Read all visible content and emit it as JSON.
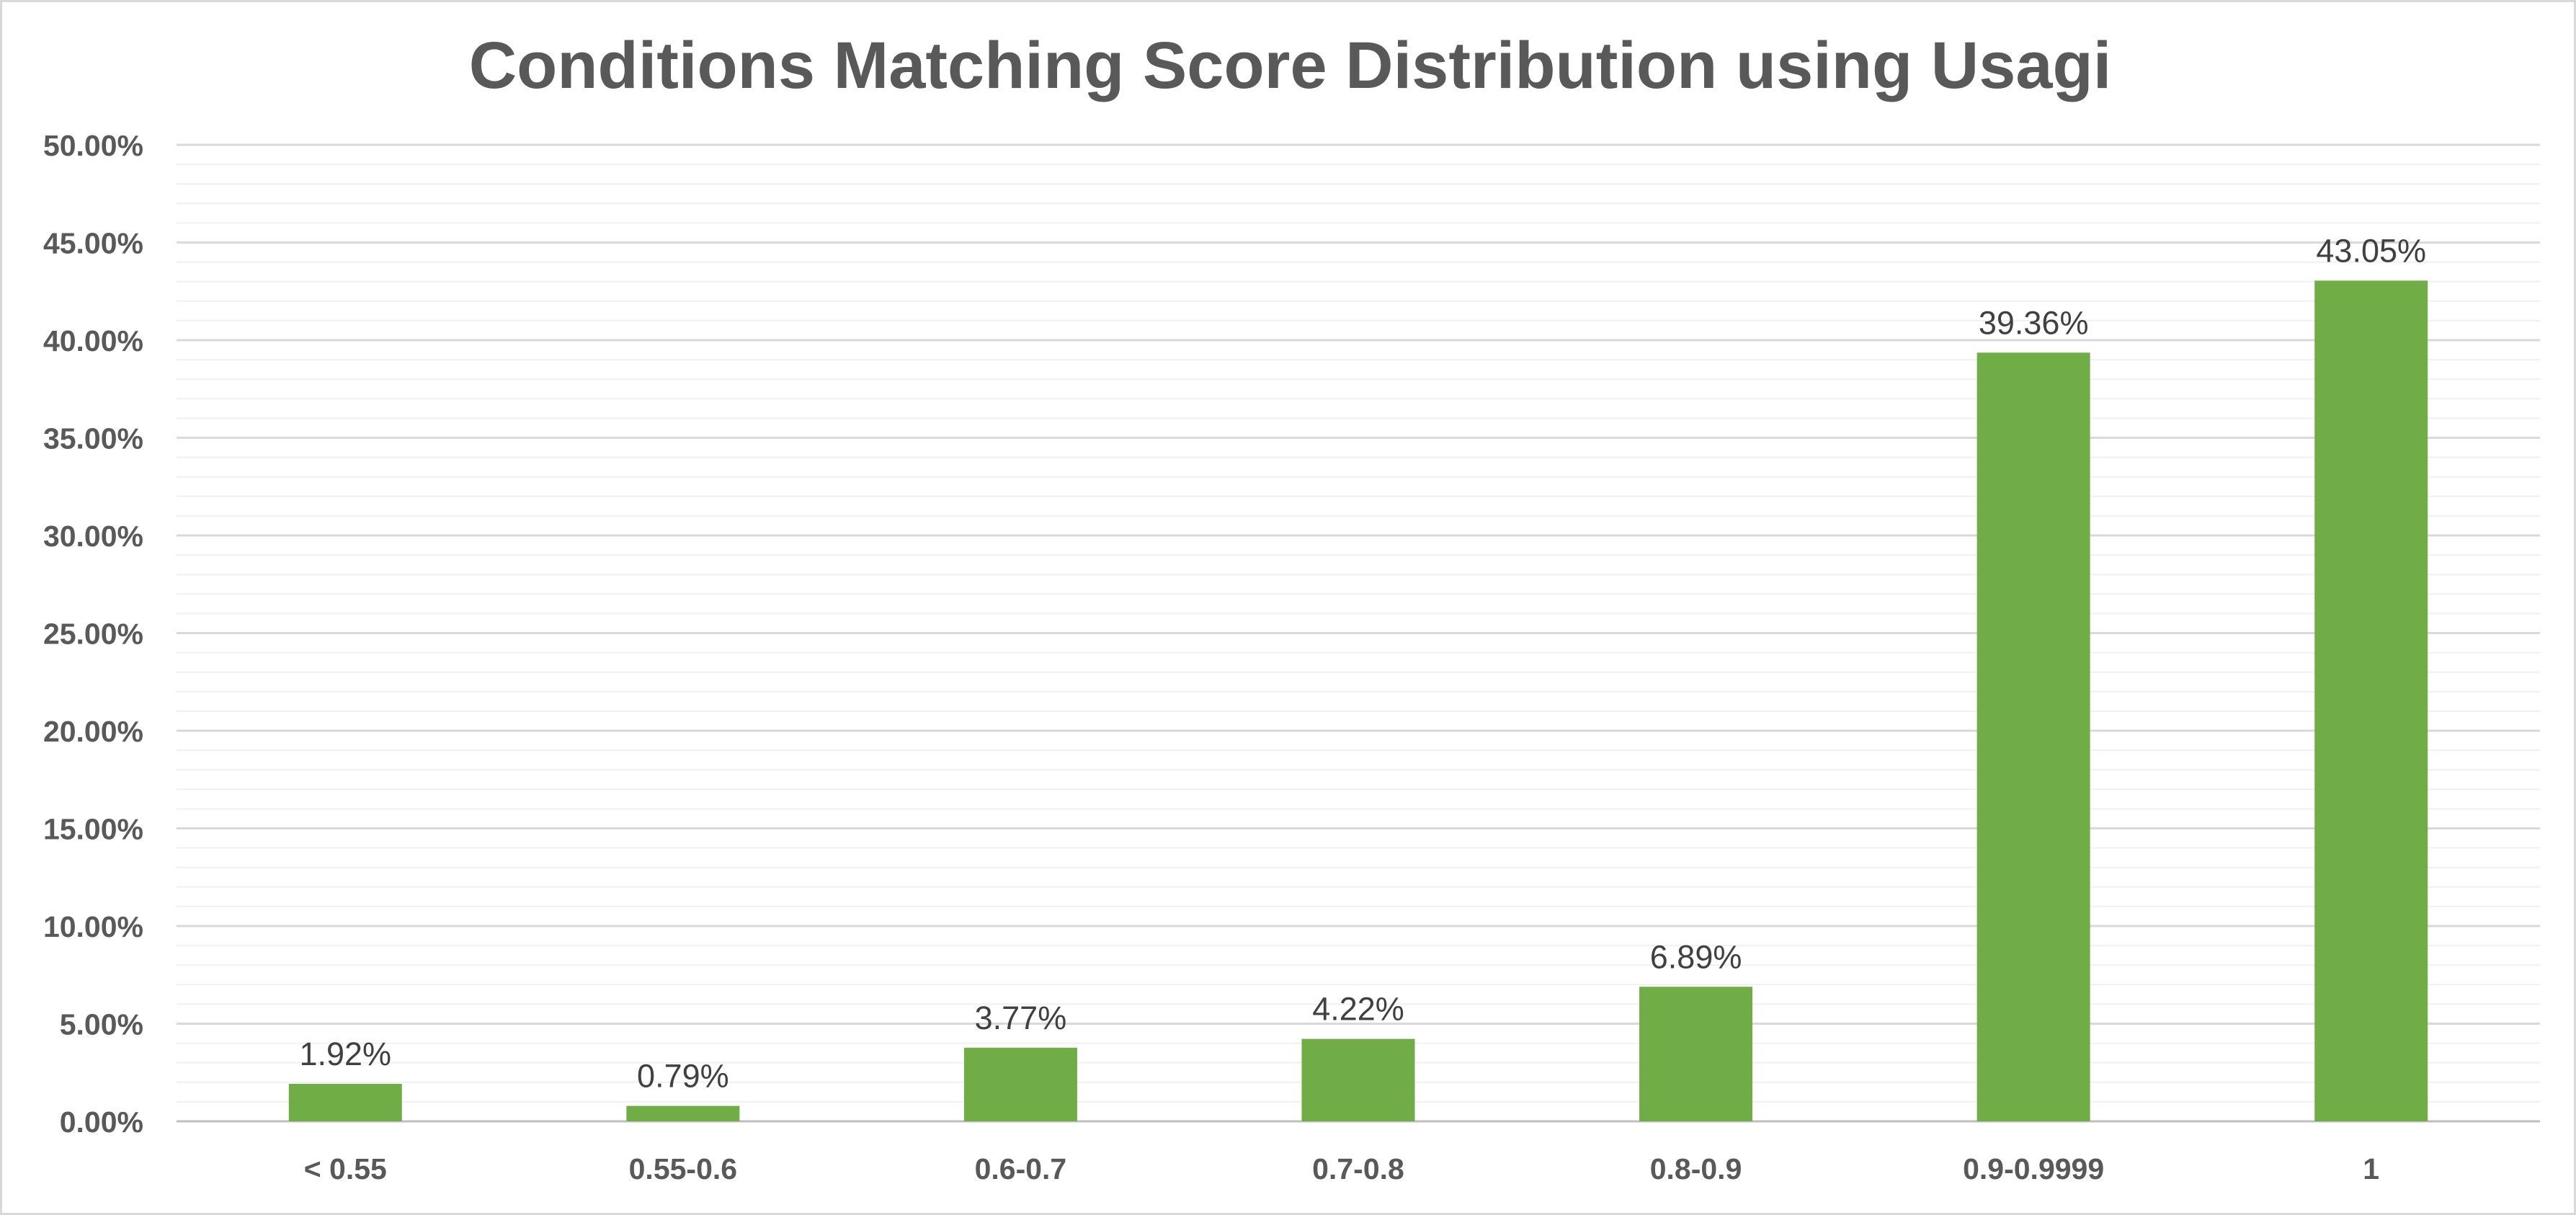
{
  "chart_data": {
    "type": "bar",
    "title": "Conditions Matching Score Distribution using Usagi",
    "xlabel": "",
    "ylabel": "",
    "categories": [
      "< 0.55",
      "0.55-0.6",
      "0.6-0.7",
      "0.7-0.8",
      "0.8-0.9",
      "0.9-0.9999",
      "1"
    ],
    "values": [
      1.92,
      0.79,
      3.77,
      4.22,
      6.89,
      39.36,
      43.05
    ],
    "data_labels": [
      "1.92%",
      "0.79%",
      "3.77%",
      "4.22%",
      "6.89%",
      "39.36%",
      "43.05%"
    ],
    "ylim": [
      0,
      50
    ],
    "yticks": [
      0,
      5,
      10,
      15,
      20,
      25,
      30,
      35,
      40,
      45,
      50
    ],
    "ytick_labels": [
      "0.00%",
      "5.00%",
      "10.00%",
      "15.00%",
      "20.00%",
      "25.00%",
      "30.00%",
      "35.00%",
      "40.00%",
      "45.00%",
      "50.00%"
    ],
    "minor_grid_step": 1,
    "grid": true,
    "legend": "none",
    "bar_color": "#70ad47",
    "major_grid_color": "#d9d9d9",
    "minor_grid_color": "#f0f0f0"
  }
}
